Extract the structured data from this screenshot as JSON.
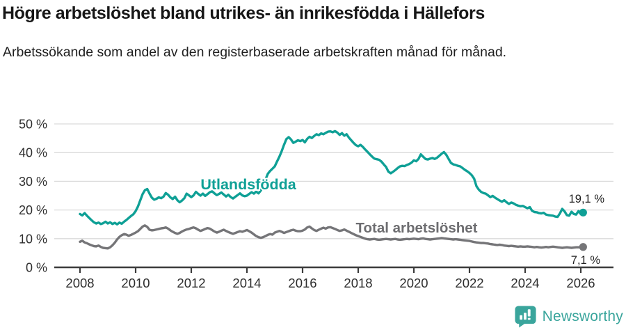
{
  "header": {
    "title": "Högre arbetslöshet bland utrikes- än inrikesfödda i Hällefors",
    "subtitle": "Arbetssökande som andel av den registerbaserade arbetskraften månad för månad."
  },
  "chart_data": {
    "type": "line",
    "unit": "%",
    "frequency": "monthly",
    "x_start": "2008-01",
    "x_end": "2026-02",
    "ylim": [
      0,
      50
    ],
    "grid": "horizontal",
    "y_ticks": [
      0,
      10,
      20,
      30,
      40,
      50
    ],
    "y_tick_suffix": " %",
    "x_ticks": [
      2008,
      2010,
      2012,
      2014,
      2016,
      2018,
      2020,
      2022,
      2024,
      2026
    ],
    "series": [
      {
        "name": "Utlandsfödda",
        "color": "#0fa096",
        "end_label": "19,1 %",
        "end_value": 19.1,
        "values": [
          18.6,
          18.1,
          18.9,
          18.0,
          17.2,
          16.4,
          15.7,
          15.3,
          15.6,
          15.1,
          15.4,
          15.9,
          15.3,
          15.7,
          15.1,
          15.5,
          15.0,
          15.6,
          15.2,
          15.9,
          16.5,
          17.2,
          17.9,
          18.5,
          19.6,
          21.2,
          23.4,
          25.5,
          26.9,
          27.3,
          25.7,
          24.3,
          23.6,
          23.9,
          24.4,
          24.1,
          24.6,
          25.9,
          25.3,
          24.4,
          23.8,
          24.6,
          23.4,
          22.7,
          23.3,
          24.1,
          25.7,
          25.1,
          24.5,
          25.1,
          26.3,
          25.6,
          25.0,
          25.7,
          24.9,
          25.5,
          26.2,
          26.5,
          25.8,
          25.2,
          25.6,
          26.1,
          25.4,
          24.7,
          25.3,
          24.5,
          24.0,
          24.6,
          25.2,
          25.8,
          25.1,
          24.8,
          25.0,
          25.6,
          26.2,
          25.7,
          26.4,
          25.8,
          26.8,
          28.6,
          30.6,
          32.6,
          33.6,
          34.4,
          35.2,
          36.9,
          38.6,
          40.5,
          42.7,
          44.7,
          45.4,
          44.6,
          43.4,
          43.8,
          44.3,
          44.0,
          44.4,
          43.6,
          44.8,
          45.5,
          45.1,
          45.8,
          46.4,
          46.1,
          46.7,
          46.4,
          46.9,
          47.3,
          47.4,
          47.1,
          47.5,
          47.0,
          46.2,
          46.8,
          45.9,
          46.4,
          45.2,
          44.3,
          43.4,
          42.6,
          42.2,
          42.7,
          42.0,
          41.1,
          40.3,
          39.4,
          38.6,
          37.9,
          37.7,
          37.5,
          36.9,
          35.9,
          35.0,
          33.4,
          32.8,
          33.3,
          33.9,
          34.6,
          35.2,
          35.4,
          35.3,
          35.7,
          36.0,
          36.5,
          37.3,
          37.0,
          37.8,
          39.4,
          38.6,
          37.8,
          37.6,
          37.9,
          38.1,
          37.8,
          38.2,
          38.9,
          39.6,
          40.2,
          39.2,
          37.8,
          36.4,
          35.9,
          35.7,
          35.4,
          35.2,
          34.6,
          34.0,
          33.5,
          32.9,
          32.1,
          30.9,
          28.3,
          27.1,
          26.3,
          25.9,
          25.7,
          25.1,
          24.5,
          24.9,
          24.3,
          23.8,
          23.3,
          22.9,
          23.4,
          22.7,
          22.1,
          22.6,
          22.3,
          21.8,
          21.5,
          21.3,
          21.4,
          21.0,
          20.6,
          21.0,
          19.7,
          19.3,
          19.2,
          18.9,
          18.8,
          19.0,
          18.4,
          18.2,
          18.1,
          18.0,
          17.7,
          17.6,
          18.8,
          20.4,
          19.5,
          18.2,
          18.0,
          19.4,
          18.6,
          18.4,
          19.6,
          18.6,
          19.1
        ]
      },
      {
        "name": "Total arbetslöshet",
        "color": "#757578",
        "end_label": "7,1 %",
        "end_value": 7.1,
        "values": [
          8.9,
          9.3,
          8.7,
          8.4,
          8.0,
          7.7,
          7.4,
          7.3,
          7.6,
          7.1,
          6.8,
          6.7,
          6.6,
          7.0,
          7.7,
          8.6,
          9.7,
          10.6,
          11.2,
          11.6,
          11.4,
          11.0,
          11.3,
          11.7,
          12.1,
          12.6,
          13.4,
          14.2,
          14.6,
          14.1,
          13.1,
          12.9,
          13.0,
          13.2,
          13.4,
          13.6,
          13.7,
          13.9,
          13.5,
          12.9,
          12.4,
          12.0,
          11.7,
          12.0,
          12.5,
          12.9,
          13.2,
          13.4,
          13.7,
          13.9,
          13.6,
          13.1,
          12.7,
          13.0,
          13.4,
          13.7,
          13.5,
          13.0,
          12.5,
          12.1,
          12.4,
          12.8,
          13.1,
          12.7,
          12.3,
          12.0,
          11.7,
          12.0,
          12.3,
          12.6,
          12.4,
          12.7,
          13.0,
          12.6,
          12.1,
          11.5,
          10.9,
          10.5,
          10.3,
          10.5,
          10.9,
          11.3,
          11.6,
          11.4,
          12.1,
          12.4,
          12.7,
          12.4,
          12.0,
          12.3,
          12.6,
          12.9,
          13.1,
          12.8,
          12.6,
          12.6,
          12.8,
          13.2,
          13.9,
          14.2,
          13.6,
          13.0,
          12.7,
          13.1,
          13.5,
          13.8,
          13.5,
          13.9,
          14.0,
          13.7,
          13.4,
          13.0,
          12.7,
          12.9,
          13.2,
          12.8,
          12.4,
          12.0,
          11.6,
          11.2,
          10.9,
          10.6,
          10.3,
          10.0,
          9.8,
          9.7,
          9.8,
          9.9,
          9.7,
          9.6,
          9.7,
          9.8,
          9.9,
          9.8,
          9.7,
          9.8,
          9.9,
          9.7,
          9.6,
          9.7,
          9.8,
          9.9,
          9.8,
          9.9,
          10.0,
          9.9,
          9.8,
          10.0,
          10.1,
          9.9,
          9.8,
          9.7,
          9.8,
          9.9,
          10.0,
          10.1,
          10.2,
          10.1,
          10.0,
          9.9,
          9.8,
          9.7,
          9.8,
          9.7,
          9.6,
          9.5,
          9.4,
          9.3,
          9.2,
          9.0,
          8.8,
          8.7,
          8.6,
          8.5,
          8.5,
          8.4,
          8.3,
          8.1,
          8.0,
          7.9,
          7.8,
          7.9,
          7.8,
          7.6,
          7.5,
          7.4,
          7.5,
          7.4,
          7.3,
          7.2,
          7.3,
          7.2,
          7.2,
          7.3,
          7.2,
          7.1,
          7.0,
          7.1,
          7.0,
          6.9,
          7.0,
          7.1,
          7.0,
          7.1,
          7.2,
          7.1,
          7.0,
          6.9,
          6.8,
          6.9,
          7.0,
          6.9,
          6.8,
          6.9,
          7.0,
          7.0,
          7.0,
          7.1
        ]
      }
    ],
    "colors": {
      "grid": "#dadada",
      "axis": "#3c3c3c",
      "tick_text": "#2e2e2e",
      "annotation_text": "#1f1f1f",
      "series_label_gray": "#6d6d70"
    }
  },
  "footer": {
    "brand": "Newsworthy",
    "logo_color": "#3aa59c"
  }
}
